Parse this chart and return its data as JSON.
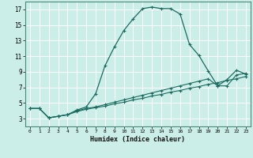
{
  "title": "",
  "xlabel": "Humidex (Indice chaleur)",
  "ylabel": "",
  "bg_color": "#cceee8",
  "grid_color": "#aaddcc",
  "line_color": "#1a6b60",
  "xlim": [
    -0.5,
    23.5
  ],
  "ylim": [
    2.0,
    18.0
  ],
  "xticks": [
    0,
    1,
    2,
    3,
    4,
    5,
    6,
    7,
    8,
    9,
    10,
    11,
    12,
    13,
    14,
    15,
    16,
    17,
    18,
    19,
    20,
    21,
    22,
    23
  ],
  "yticks": [
    3,
    5,
    7,
    9,
    11,
    13,
    15,
    17
  ],
  "curve1_x": [
    0,
    1,
    2,
    3,
    4,
    5,
    6,
    7,
    8,
    9,
    10,
    11,
    12,
    13,
    14,
    15,
    16,
    17,
    18,
    19,
    20,
    21,
    22,
    23
  ],
  "curve1_y": [
    4.3,
    4.3,
    3.1,
    3.3,
    3.5,
    4.1,
    4.5,
    6.2,
    9.8,
    12.2,
    14.3,
    15.8,
    17.1,
    17.3,
    17.1,
    17.1,
    16.4,
    12.5,
    11.1,
    9.1,
    7.2,
    8.0,
    9.2,
    8.7
  ],
  "curve2_x": [
    0,
    1,
    2,
    3,
    4,
    5,
    6,
    7,
    8,
    9,
    10,
    11,
    12,
    13,
    14,
    15,
    16,
    17,
    18,
    19,
    20,
    21,
    22,
    23
  ],
  "curve2_y": [
    4.3,
    4.3,
    3.1,
    3.3,
    3.5,
    3.9,
    4.2,
    4.4,
    4.6,
    4.9,
    5.1,
    5.4,
    5.6,
    5.9,
    6.1,
    6.4,
    6.6,
    6.9,
    7.1,
    7.4,
    7.6,
    7.9,
    8.1,
    8.4
  ],
  "curve3_x": [
    0,
    1,
    2,
    3,
    4,
    5,
    6,
    7,
    8,
    9,
    10,
    11,
    12,
    13,
    14,
    15,
    16,
    17,
    18,
    19,
    20,
    21,
    22,
    23
  ],
  "curve3_y": [
    4.3,
    4.3,
    3.1,
    3.3,
    3.5,
    4.0,
    4.3,
    4.5,
    4.8,
    5.1,
    5.4,
    5.7,
    6.0,
    6.3,
    6.6,
    6.9,
    7.2,
    7.5,
    7.8,
    8.1,
    7.2,
    7.2,
    8.6,
    8.8
  ]
}
